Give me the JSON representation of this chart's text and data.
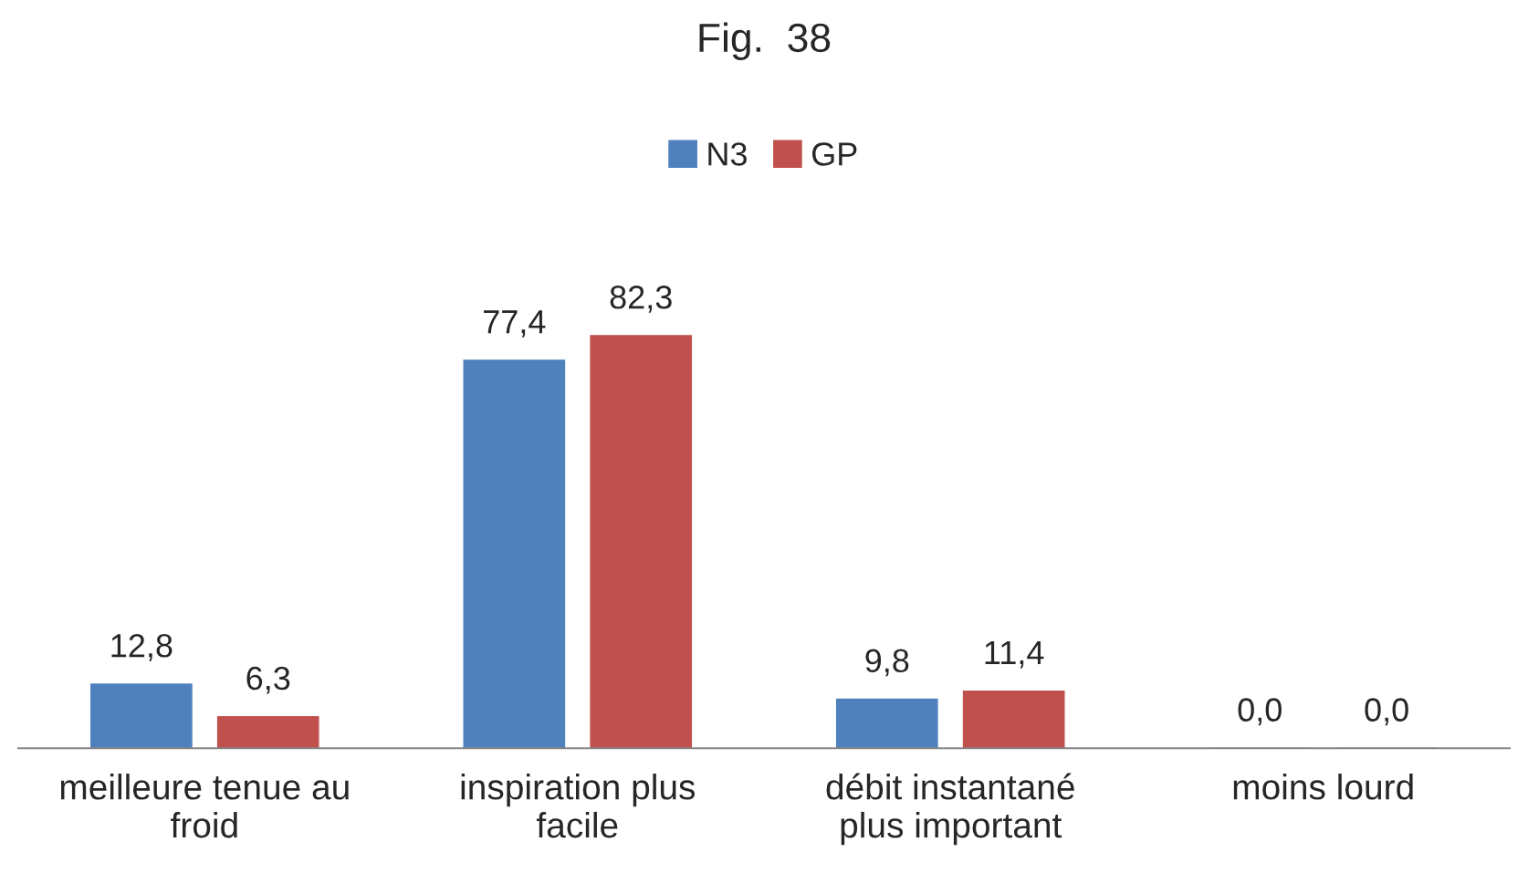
{
  "chart_data": {
    "type": "bar",
    "title": "Fig.  38",
    "categories": [
      "meilleure tenue au\nfroid",
      "inspiration plus\nfacile",
      "débit instantané\nplus important",
      "moins lourd"
    ],
    "series": [
      {
        "name": "N3",
        "color": "#4f81bd",
        "values": [
          12.8,
          77.4,
          9.8,
          0.0
        ],
        "value_labels": [
          "12,8",
          "77,4",
          "9,8",
          "0,0"
        ]
      },
      {
        "name": "GP",
        "color": "#c0504d",
        "values": [
          6.3,
          82.3,
          11.4,
          0.0
        ],
        "value_labels": [
          "6,3",
          "82,3",
          "11,4",
          "0,0"
        ]
      }
    ],
    "legend": "top",
    "grid": false
  }
}
